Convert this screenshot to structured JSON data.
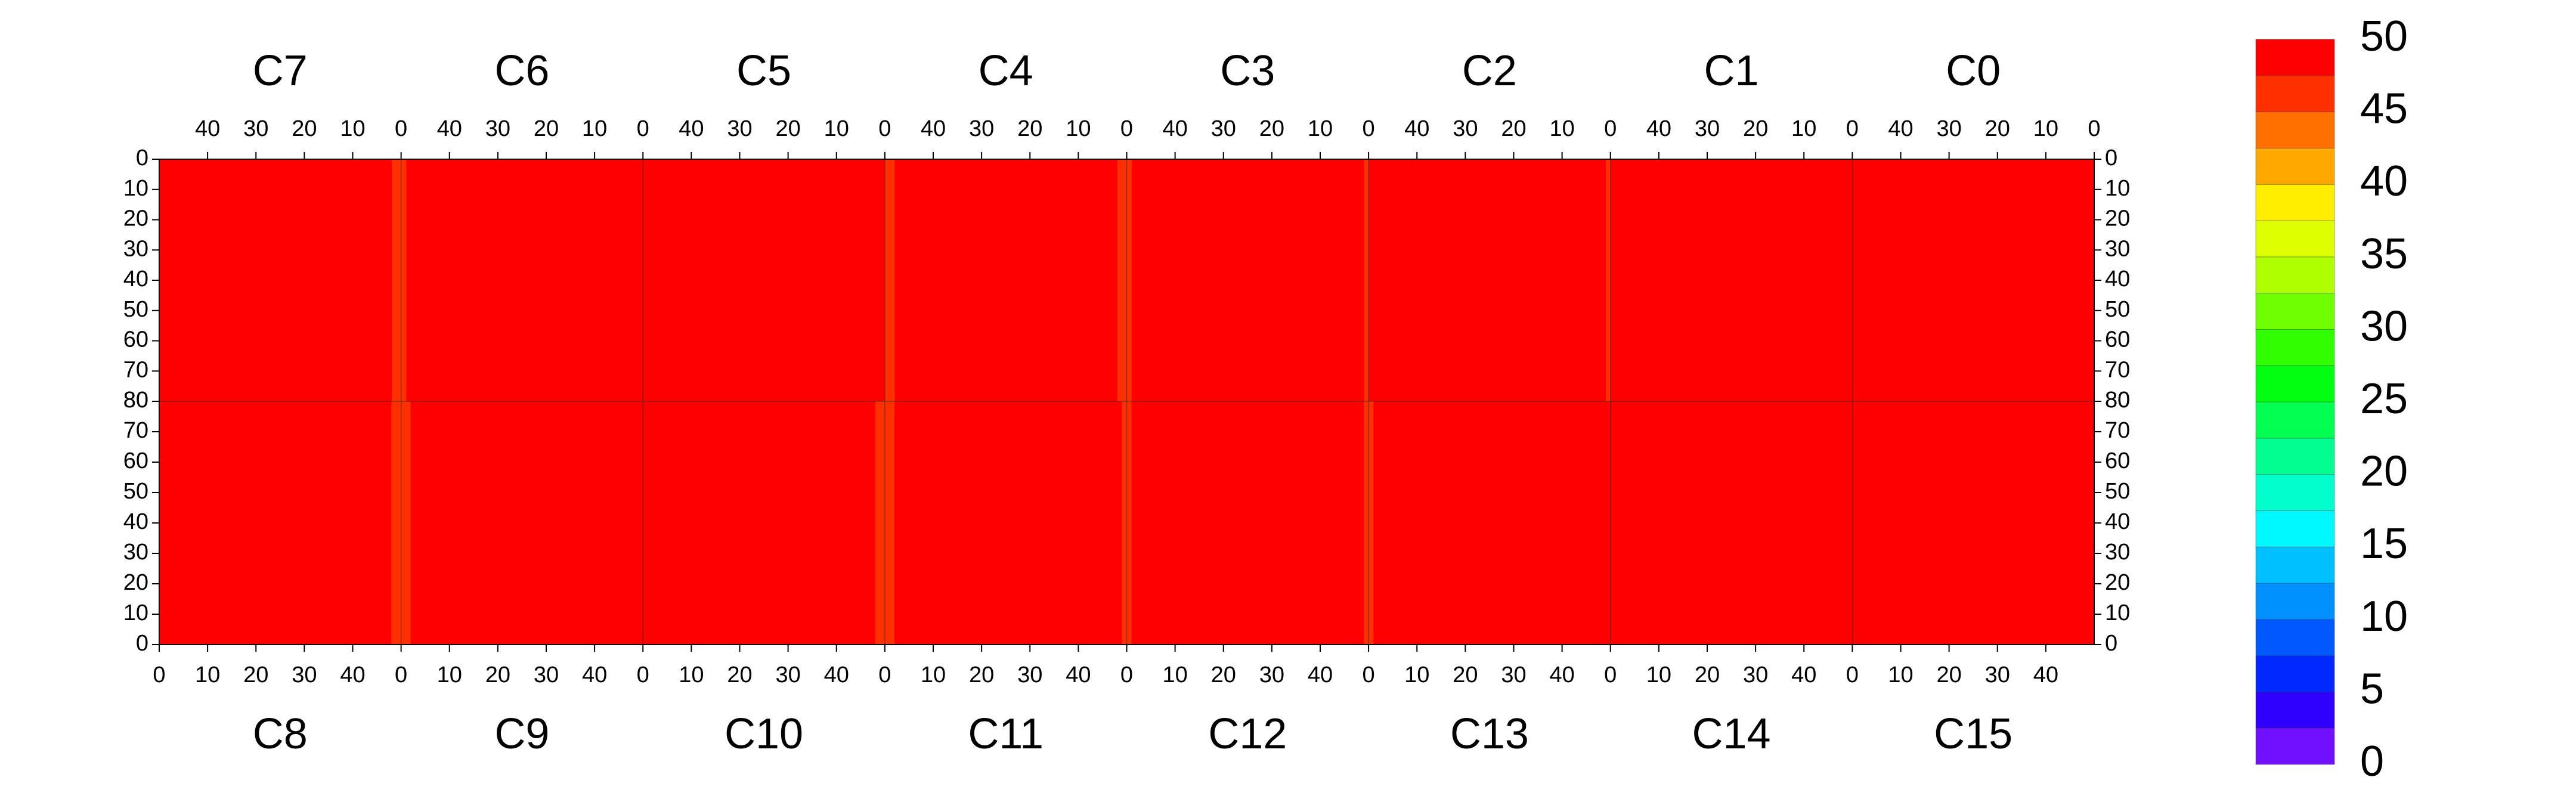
{
  "chart_data": {
    "type": "heatmap",
    "xlim": [
      0,
      50
    ],
    "ylim": [
      0,
      80
    ],
    "xticks": [
      0,
      10,
      20,
      30,
      40
    ],
    "yticks": [
      0,
      10,
      20,
      30,
      40,
      50,
      60,
      70,
      80
    ],
    "panels": [
      {
        "name": "C7",
        "values": [
          46,
          47,
          49,
          50,
          50,
          50,
          50,
          50,
          50,
          50,
          50,
          50,
          50,
          50,
          50,
          50,
          50,
          50,
          50,
          50,
          50,
          50,
          50,
          50,
          50,
          50,
          50,
          50,
          50,
          50,
          50,
          50,
          50,
          50,
          50,
          50,
          50,
          50,
          50,
          50,
          50,
          50,
          50,
          50,
          50,
          50,
          50,
          50,
          50,
          50
        ]
      },
      {
        "name": "C6",
        "values": [
          48,
          49,
          50,
          50,
          50,
          50,
          50,
          50,
          50,
          50,
          50,
          50,
          50,
          50,
          50,
          50,
          50,
          50,
          50,
          50,
          50,
          50,
          50,
          50,
          50,
          50,
          50,
          50,
          50,
          50,
          50,
          50,
          50,
          50,
          50,
          50,
          50,
          50,
          50,
          50,
          50,
          50,
          50,
          50,
          50,
          50,
          50,
          50,
          48,
          47
        ]
      },
      {
        "name": "C5",
        "values": [
          49,
          50,
          50,
          50,
          50,
          50,
          50,
          50,
          50,
          50,
          50,
          50,
          50,
          50,
          50,
          50,
          50,
          50,
          50,
          50,
          50,
          50,
          50,
          50,
          50,
          50,
          50,
          50,
          50,
          50,
          50,
          50,
          50,
          50,
          50,
          50,
          50,
          50,
          50,
          50,
          50,
          50,
          50,
          50,
          50,
          50,
          50,
          50,
          50,
          49
        ]
      },
      {
        "name": "C4",
        "values": [
          45,
          46,
          48,
          50,
          50,
          50,
          50,
          50,
          50,
          50,
          50,
          50,
          50,
          50,
          50,
          50,
          50,
          50,
          50,
          50,
          50,
          50,
          50,
          50,
          50,
          50,
          50,
          50,
          50,
          50,
          50,
          50,
          50,
          50,
          50,
          50,
          50,
          50,
          50,
          50,
          50,
          50,
          50,
          50,
          50,
          50,
          50,
          50,
          47,
          45
        ]
      },
      {
        "name": "C3",
        "values": [
          46,
          48,
          50,
          50,
          50,
          50,
          50,
          50,
          50,
          50,
          50,
          50,
          50,
          50,
          50,
          50,
          50,
          50,
          50,
          50,
          50,
          50,
          50,
          50,
          50,
          50,
          50,
          50,
          50,
          50,
          50,
          50,
          50,
          50,
          50,
          50,
          50,
          50,
          50,
          50,
          50,
          50,
          50,
          50,
          50,
          50,
          50,
          50,
          48,
          46
        ]
      },
      {
        "name": "C2",
        "values": [
          47,
          48,
          50,
          50,
          50,
          50,
          50,
          50,
          50,
          50,
          50,
          50,
          50,
          50,
          50,
          50,
          50,
          50,
          50,
          50,
          50,
          50,
          50,
          50,
          50,
          50,
          50,
          50,
          50,
          50,
          50,
          50,
          50,
          50,
          50,
          50,
          50,
          50,
          50,
          50,
          50,
          50,
          50,
          50,
          50,
          50,
          50,
          50,
          50,
          48
        ]
      },
      {
        "name": "C1",
        "values": [
          49,
          50,
          50,
          50,
          50,
          50,
          50,
          50,
          50,
          50,
          50,
          50,
          50,
          50,
          50,
          50,
          50,
          50,
          50,
          50,
          50,
          50,
          50,
          50,
          50,
          50,
          50,
          50,
          50,
          50,
          50,
          50,
          50,
          50,
          50,
          50,
          50,
          50,
          50,
          50,
          50,
          50,
          50,
          50,
          50,
          50,
          50,
          50,
          50,
          50
        ]
      },
      {
        "name": "C0",
        "values": [
          49,
          50,
          50,
          50,
          50,
          50,
          50,
          50,
          50,
          50,
          50,
          50,
          50,
          50,
          50,
          50,
          50,
          50,
          50,
          50,
          50,
          50,
          50,
          50,
          50,
          50,
          50,
          50,
          50,
          50,
          50,
          50,
          50,
          50,
          50,
          50,
          50,
          50,
          50,
          50,
          50,
          50,
          50,
          50,
          50,
          50,
          50,
          50,
          50,
          49
        ]
      },
      {
        "name": "C8",
        "values": [
          50,
          50,
          50,
          50,
          50,
          50,
          50,
          50,
          50,
          50,
          50,
          50,
          50,
          50,
          50,
          50,
          50,
          50,
          50,
          50,
          50,
          50,
          50,
          50,
          50,
          50,
          50,
          50,
          50,
          50,
          50,
          50,
          50,
          50,
          50,
          50,
          50,
          50,
          50,
          50,
          50,
          50,
          50,
          50,
          50,
          50,
          50,
          49,
          47,
          46
        ]
      },
      {
        "name": "C9",
        "values": [
          46,
          47,
          49,
          50,
          50,
          50,
          50,
          50,
          50,
          50,
          50,
          50,
          50,
          50,
          50,
          50,
          50,
          50,
          50,
          50,
          50,
          50,
          50,
          50,
          50,
          50,
          50,
          50,
          50,
          50,
          50,
          50,
          50,
          50,
          50,
          50,
          50,
          50,
          50,
          50,
          50,
          50,
          50,
          50,
          50,
          50,
          50,
          50,
          50,
          48
        ]
      },
      {
        "name": "C10",
        "values": [
          48,
          50,
          50,
          50,
          50,
          50,
          50,
          50,
          50,
          50,
          50,
          50,
          50,
          50,
          50,
          50,
          50,
          50,
          50,
          50,
          50,
          50,
          50,
          50,
          50,
          50,
          50,
          50,
          50,
          50,
          50,
          50,
          50,
          50,
          50,
          50,
          50,
          50,
          50,
          50,
          50,
          50,
          50,
          50,
          50,
          50,
          50,
          50,
          47,
          45
        ]
      },
      {
        "name": "C11",
        "values": [
          45,
          46,
          48,
          50,
          50,
          50,
          50,
          50,
          50,
          50,
          50,
          50,
          50,
          50,
          50,
          50,
          50,
          50,
          50,
          50,
          50,
          50,
          50,
          50,
          50,
          50,
          50,
          50,
          50,
          50,
          50,
          50,
          50,
          50,
          50,
          50,
          50,
          50,
          50,
          50,
          50,
          50,
          50,
          50,
          50,
          50,
          50,
          50,
          50,
          46
        ]
      },
      {
        "name": "C12",
        "values": [
          46,
          48,
          50,
          50,
          50,
          50,
          50,
          50,
          50,
          50,
          50,
          50,
          50,
          50,
          50,
          50,
          50,
          50,
          50,
          50,
          50,
          50,
          50,
          50,
          50,
          50,
          50,
          50,
          50,
          50,
          50,
          50,
          50,
          50,
          50,
          50,
          50,
          50,
          50,
          50,
          50,
          50,
          50,
          50,
          50,
          50,
          50,
          50,
          50,
          47
        ]
      },
      {
        "name": "C13",
        "values": [
          47,
          48,
          50,
          50,
          50,
          50,
          50,
          50,
          50,
          50,
          50,
          50,
          50,
          50,
          50,
          50,
          50,
          50,
          50,
          50,
          50,
          50,
          50,
          50,
          50,
          50,
          50,
          50,
          50,
          50,
          50,
          50,
          50,
          50,
          50,
          50,
          50,
          50,
          50,
          50,
          50,
          50,
          50,
          50,
          50,
          50,
          50,
          50,
          50,
          50
        ]
      },
      {
        "name": "C14",
        "values": [
          50,
          50,
          50,
          50,
          50,
          50,
          50,
          50,
          50,
          50,
          50,
          50,
          50,
          50,
          50,
          50,
          50,
          50,
          50,
          50,
          50,
          50,
          50,
          50,
          50,
          50,
          50,
          50,
          50,
          50,
          50,
          50,
          50,
          50,
          50,
          50,
          50,
          50,
          50,
          50,
          50,
          50,
          50,
          50,
          50,
          50,
          50,
          50,
          50,
          49
        ]
      },
      {
        "name": "C15",
        "values": [
          49,
          50,
          50,
          50,
          50,
          50,
          50,
          50,
          50,
          50,
          50,
          50,
          50,
          50,
          50,
          50,
          50,
          50,
          50,
          50,
          50,
          50,
          50,
          50,
          50,
          50,
          50,
          50,
          50,
          50,
          50,
          50,
          50,
          50,
          50,
          50,
          50,
          50,
          50,
          50,
          50,
          50,
          50,
          50,
          50,
          50,
          50,
          50,
          50,
          49
        ]
      }
    ],
    "colorbar": {
      "levels": [
        0,
        2.5,
        5,
        7.5,
        10,
        12.5,
        15,
        17.5,
        20,
        22.5,
        25,
        27.5,
        30,
        32.5,
        35,
        37.5,
        40,
        42.5,
        45,
        47.5,
        50
      ],
      "colors": [
        "#7010ff",
        "#3000ff",
        "#0028ff",
        "#0058ff",
        "#0090ff",
        "#00c0ff",
        "#00f8ff",
        "#00ffcc",
        "#00ff90",
        "#00ff50",
        "#00ff10",
        "#30ff00",
        "#70ff00",
        "#b0ff00",
        "#ddff00",
        "#ffee00",
        "#ffa800",
        "#ff7000",
        "#ff3000",
        "#ff0000"
      ],
      "ticks": [
        0,
        5,
        10,
        15,
        20,
        25,
        30,
        35,
        40,
        45,
        50
      ]
    }
  }
}
